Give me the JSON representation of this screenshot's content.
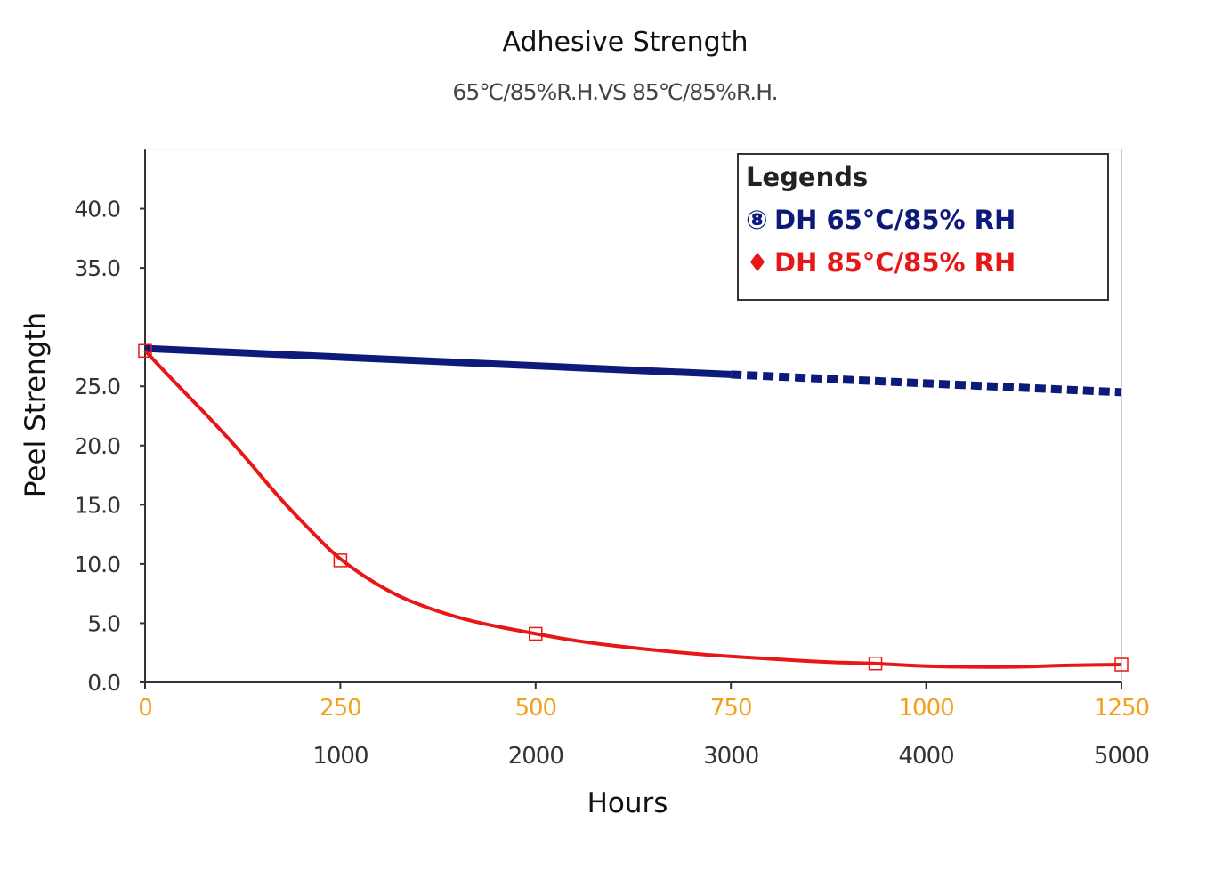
{
  "chart_data": {
    "type": "line",
    "title": "Adhesive Strength",
    "subtitle": "65℃/85%R.H.VS 85℃/85%R.H.",
    "ylabel": "Peel Strength",
    "xlabel": "Hours",
    "ylim": [
      0,
      45
    ],
    "yticks": [
      "0.0",
      "5.0",
      "10.0",
      "15.0",
      "20.0",
      "25.0",
      "35.0",
      "40.0"
    ],
    "xlim": [
      0,
      1250
    ],
    "xticks_primary": [
      "0",
      "250",
      "500",
      "750",
      "1000",
      "1250"
    ],
    "xticks_primary_color": "#f2a01e",
    "xticks_secondary": [
      "1000",
      "2000",
      "3000",
      "4000",
      "5000"
    ],
    "legend": {
      "title": "Legends",
      "placement": "top-right",
      "entries": [
        "DH 65°C/85% RH",
        "DH 85°C/85% RH"
      ]
    },
    "series": [
      {
        "name": "DH 65°C/85% RH",
        "color": "#0d1a7a",
        "marker_glyph": "⑧",
        "x_axis": "secondary",
        "solid": {
          "x": [
            0,
            3000
          ],
          "y": [
            28.2,
            26.0
          ]
        },
        "dashed": {
          "x": [
            3000,
            5000
          ],
          "y": [
            26.0,
            24.5
          ]
        }
      },
      {
        "name": "DH 85°C/85% RH",
        "color": "#e81616",
        "marker_glyph": "♦",
        "x_axis": "primary",
        "points": {
          "x": [
            0,
            250,
            500,
            935,
            1250
          ],
          "y": [
            28.0,
            10.3,
            4.1,
            1.6,
            1.5
          ]
        },
        "curve": {
          "x": [
            0,
            40,
            80,
            125,
            170,
            215,
            250,
            310,
            360,
            420,
            500,
            560,
            640,
            720,
            800,
            870,
            935,
            1000,
            1060,
            1120,
            1180,
            1250
          ],
          "y": [
            28.0,
            25.2,
            22.5,
            19.3,
            15.7,
            12.6,
            10.3,
            7.7,
            6.3,
            5.1,
            4.1,
            3.4,
            2.8,
            2.3,
            2.0,
            1.7,
            1.6,
            1.35,
            1.3,
            1.3,
            1.45,
            1.5
          ]
        }
      }
    ]
  }
}
